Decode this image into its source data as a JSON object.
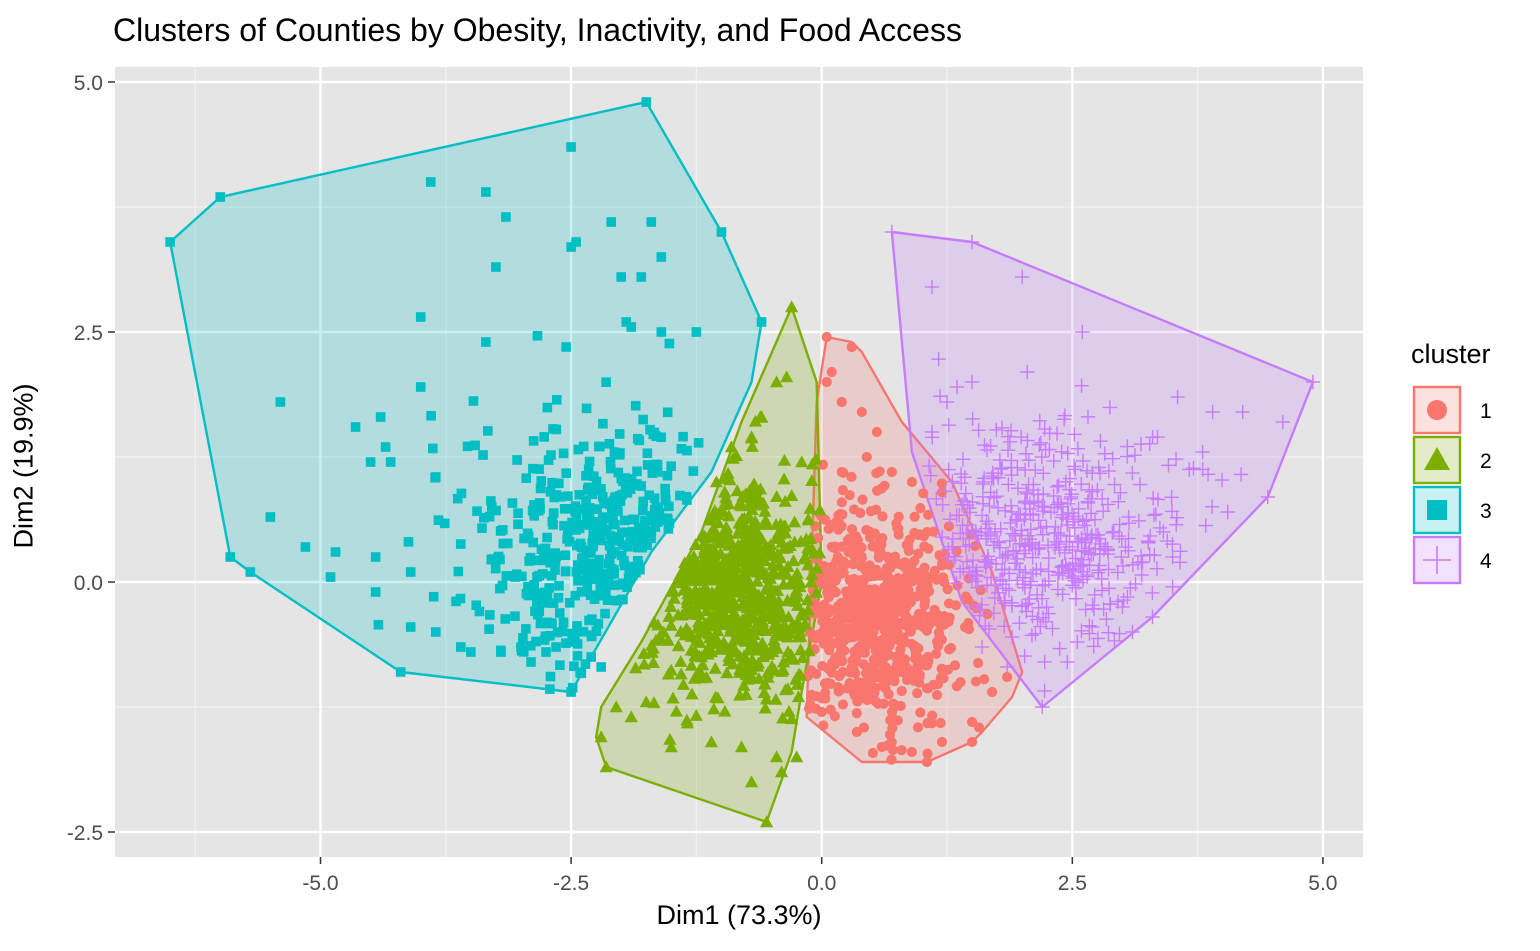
{
  "chart_data": {
    "type": "scatter",
    "title": "Clusters of Counties by Obesity, Inactivity, and Food Access",
    "xlabel": "Dim1 (73.3%)",
    "ylabel": "Dim2 (19.9%)",
    "xlim": [
      -7.05,
      5.4
    ],
    "ylim": [
      -2.75,
      5.15
    ],
    "x_ticks": [
      -5.0,
      -2.5,
      0.0,
      2.5,
      5.0
    ],
    "x_tick_labels": [
      "-5.0",
      "-2.5",
      "0.0",
      "2.5",
      "5.0"
    ],
    "y_ticks": [
      -2.5,
      0.0,
      2.5,
      5.0
    ],
    "y_tick_labels": [
      "-2.5",
      "0.0",
      "2.5",
      "5.0"
    ],
    "grid": true,
    "panel_background": "#e5e5e5",
    "legend": {
      "title": "cluster",
      "position": "right"
    },
    "series": [
      {
        "name": "1",
        "shape": "circle",
        "color": "#f8766d",
        "hull": [
          [
            0.05,
            2.45
          ],
          [
            0.3,
            2.4
          ],
          [
            0.4,
            2.3
          ],
          [
            0.8,
            1.6
          ],
          [
            1.3,
            1.0
          ],
          [
            1.7,
            0.1
          ],
          [
            2.0,
            -0.9
          ],
          [
            1.9,
            -1.15
          ],
          [
            1.6,
            -1.5
          ],
          [
            1.5,
            -1.6
          ],
          [
            1.05,
            -1.8
          ],
          [
            0.4,
            -1.8
          ],
          [
            -0.15,
            -1.35
          ],
          [
            -0.05,
            1.8
          ]
        ],
        "center": [
          0.5,
          -0.35
        ],
        "spread": [
          0.45,
          0.55
        ],
        "count": 700,
        "extra_points": [
          [
            0.05,
            2.45
          ],
          [
            0.3,
            2.35
          ],
          [
            0.1,
            2.1
          ],
          [
            0.05,
            2.0
          ],
          [
            0.2,
            1.8
          ],
          [
            0.4,
            1.7
          ],
          [
            0.55,
            1.5
          ],
          [
            0.45,
            1.25
          ],
          [
            0.2,
            1.1
          ],
          [
            0.7,
            1.1
          ],
          [
            0.9,
            1.0
          ],
          [
            1.05,
            0.5
          ],
          [
            1.5,
            -1.4
          ],
          [
            1.7,
            -1.1
          ],
          [
            1.2,
            -1.6
          ],
          [
            0.9,
            -1.7
          ],
          [
            0.6,
            -1.65
          ],
          [
            0.35,
            -1.5
          ],
          [
            1.05,
            -1.8
          ],
          [
            1.5,
            -1.6
          ],
          [
            1.85,
            -0.95
          ],
          [
            0.0,
            -1.3
          ]
        ]
      },
      {
        "name": "2",
        "shape": "triangle",
        "color": "#7cae00",
        "hull": [
          [
            -0.3,
            2.75
          ],
          [
            -0.05,
            2.0
          ],
          [
            0.0,
            0.0
          ],
          [
            -0.2,
            -1.1
          ],
          [
            -0.3,
            -1.7
          ],
          [
            -0.55,
            -2.4
          ],
          [
            -2.15,
            -1.85
          ],
          [
            -2.25,
            -1.55
          ],
          [
            -2.2,
            -1.25
          ],
          [
            -1.8,
            -0.6
          ],
          [
            -1.2,
            0.5
          ],
          [
            -0.8,
            1.6
          ]
        ],
        "center": [
          -0.85,
          -0.05
        ],
        "spread": [
          0.5,
          0.6
        ],
        "count": 700,
        "extra_points": [
          [
            -0.3,
            2.75
          ],
          [
            -0.35,
            2.05
          ],
          [
            -0.45,
            2.0
          ],
          [
            -0.6,
            1.65
          ],
          [
            -0.7,
            1.45
          ],
          [
            -0.2,
            1.2
          ],
          [
            -0.9,
            1.35
          ],
          [
            -1.05,
            1.0
          ],
          [
            -0.55,
            -2.4
          ],
          [
            -2.15,
            -1.85
          ],
          [
            -2.2,
            -1.55
          ],
          [
            -1.9,
            -1.35
          ],
          [
            -1.5,
            -1.65
          ],
          [
            -1.1,
            -1.6
          ],
          [
            -0.8,
            -1.65
          ],
          [
            -0.45,
            -1.75
          ],
          [
            -0.25,
            -1.75
          ],
          [
            -0.4,
            -1.9
          ],
          [
            -0.7,
            -2.0
          ],
          [
            -1.75,
            -1.2
          ],
          [
            -2.05,
            -1.25
          ]
        ]
      },
      {
        "name": "3",
        "shape": "square",
        "color": "#00bfc4",
        "hull": [
          [
            -1.75,
            4.8
          ],
          [
            -1.0,
            3.5
          ],
          [
            -0.6,
            2.6
          ],
          [
            -0.7,
            2.0
          ],
          [
            -1.1,
            1.1
          ],
          [
            -1.7,
            0.3
          ],
          [
            -2.5,
            -1.1
          ],
          [
            -4.2,
            -0.9
          ],
          [
            -5.7,
            0.1
          ],
          [
            -5.9,
            0.25
          ],
          [
            -6.5,
            3.4
          ],
          [
            -6.0,
            3.85
          ]
        ],
        "center": [
          -2.0,
          0.2
        ],
        "spread": [
          0.7,
          0.65
        ],
        "count": 430,
        "extra_points": [
          [
            -1.75,
            4.8
          ],
          [
            -6.0,
            3.85
          ],
          [
            -6.5,
            3.4
          ],
          [
            -1.0,
            3.5
          ],
          [
            -0.6,
            2.6
          ],
          [
            -5.7,
            0.1
          ],
          [
            -5.9,
            0.25
          ],
          [
            -4.2,
            -0.9
          ],
          [
            -2.5,
            -1.1
          ],
          [
            -2.5,
            4.35
          ],
          [
            -3.9,
            4.0
          ],
          [
            -3.35,
            3.9
          ],
          [
            -3.15,
            3.65
          ],
          [
            -2.1,
            3.6
          ],
          [
            -1.7,
            3.6
          ],
          [
            -2.45,
            3.4
          ],
          [
            -2.5,
            3.35
          ],
          [
            -1.6,
            3.25
          ],
          [
            -3.25,
            3.15
          ],
          [
            -2.0,
            3.05
          ],
          [
            -1.8,
            3.05
          ],
          [
            -4.0,
            2.65
          ],
          [
            -1.95,
            2.6
          ],
          [
            -1.9,
            2.55
          ],
          [
            -1.6,
            2.5
          ],
          [
            -1.25,
            2.5
          ],
          [
            -3.35,
            2.4
          ],
          [
            -2.55,
            2.35
          ],
          [
            -4.0,
            1.95
          ],
          [
            -5.4,
            1.8
          ],
          [
            -4.4,
            1.65
          ],
          [
            -4.65,
            1.55
          ],
          [
            -4.35,
            1.35
          ],
          [
            -4.5,
            1.2
          ],
          [
            -4.3,
            1.2
          ],
          [
            -3.85,
            1.05
          ],
          [
            -5.15,
            0.35
          ],
          [
            -5.5,
            0.65
          ],
          [
            -4.85,
            0.3
          ],
          [
            -4.9,
            0.05
          ],
          [
            -4.45,
            0.25
          ],
          [
            -4.45,
            -0.1
          ],
          [
            -4.1,
            0.1
          ],
          [
            -4.1,
            -0.45
          ],
          [
            -3.85,
            -0.5
          ],
          [
            -3.6,
            -0.65
          ],
          [
            -3.5,
            -0.7
          ],
          [
            -3.2,
            -0.7
          ],
          [
            -2.9,
            -0.8
          ],
          [
            -2.75,
            -0.7
          ],
          [
            -2.65,
            -0.65
          ],
          [
            -2.3,
            -0.75
          ],
          [
            -2.2,
            -0.85
          ]
        ]
      },
      {
        "name": "4",
        "shape": "plus",
        "color": "#c77cff",
        "hull": [
          [
            0.7,
            3.5
          ],
          [
            1.5,
            3.4
          ],
          [
            4.9,
            2.0
          ],
          [
            4.45,
            0.85
          ],
          [
            3.3,
            -0.35
          ],
          [
            2.2,
            -1.25
          ],
          [
            1.4,
            -0.2
          ],
          [
            0.9,
            1.3
          ]
        ],
        "center": [
          2.25,
          0.45
        ],
        "spread": [
          0.7,
          0.55
        ],
        "count": 480,
        "extra_points": [
          [
            0.7,
            3.5
          ],
          [
            1.5,
            3.4
          ],
          [
            4.9,
            2.0
          ],
          [
            4.45,
            0.85
          ],
          [
            3.3,
            -0.35
          ],
          [
            2.2,
            -1.25
          ],
          [
            2.0,
            3.05
          ],
          [
            1.1,
            2.95
          ],
          [
            2.6,
            2.5
          ],
          [
            2.05,
            2.1
          ],
          [
            1.35,
            1.95
          ],
          [
            1.5,
            2.0
          ],
          [
            1.25,
            1.8
          ],
          [
            1.1,
            1.5
          ],
          [
            4.6,
            1.6
          ],
          [
            4.2,
            1.7
          ],
          [
            3.9,
            1.7
          ],
          [
            3.55,
            1.85
          ],
          [
            3.8,
            1.3
          ],
          [
            3.35,
            1.45
          ],
          [
            4.05,
            0.7
          ],
          [
            3.5,
            0.25
          ],
          [
            3.2,
            0.2
          ],
          [
            3.0,
            -0.25
          ],
          [
            3.1,
            -0.5
          ],
          [
            2.7,
            -0.45
          ],
          [
            2.55,
            -0.6
          ],
          [
            2.45,
            -0.8
          ],
          [
            1.9,
            -0.55
          ],
          [
            1.85,
            -0.85
          ],
          [
            1.6,
            -0.65
          ]
        ]
      }
    ]
  }
}
